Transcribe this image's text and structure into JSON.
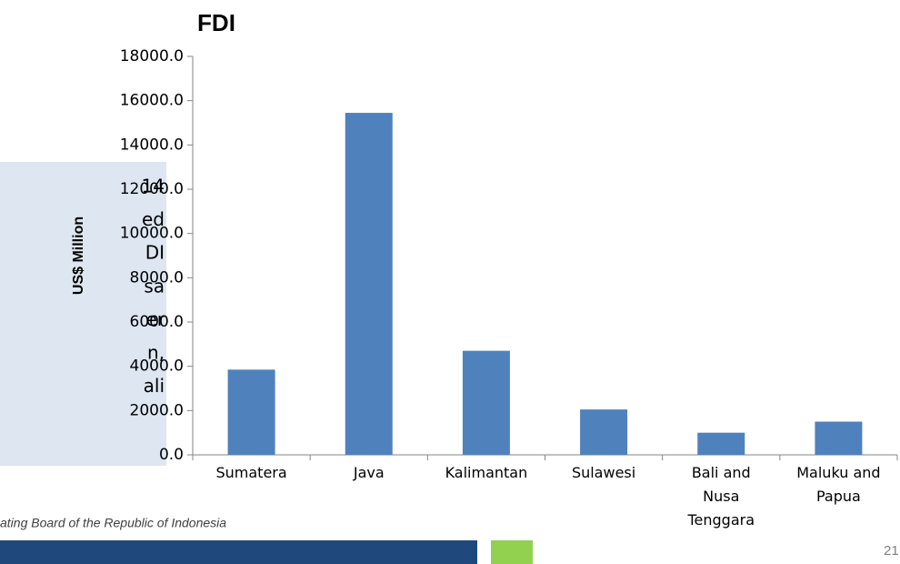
{
  "chart_data": {
    "type": "bar",
    "title": "FDI",
    "y_label": "US$ Million",
    "categories": [
      "Sumatera",
      "Java",
      "Kalimantan",
      "Sulawesi",
      "Bali and Nusa Tenggara",
      "Maluku and Papua"
    ],
    "values": [
      3850,
      15450,
      4700,
      2050,
      1000,
      1500
    ],
    "color": "#4f81bd",
    "ylim": [
      0,
      18000
    ],
    "yticks": [
      {
        "value": 0,
        "label": "0.0"
      },
      {
        "value": 2000,
        "label": "2000.0"
      },
      {
        "value": 4000,
        "label": "4000.0"
      },
      {
        "value": 6000,
        "label": "6000.0"
      },
      {
        "value": 8000,
        "label": "8000.0"
      },
      {
        "value": 10000,
        "label": "10000.0"
      },
      {
        "value": 12000,
        "label": "12000.0"
      },
      {
        "value": 14000,
        "label": "14000.0"
      },
      {
        "value": 16000,
        "label": "16000.0"
      },
      {
        "value": 18000,
        "label": "18000.0"
      }
    ],
    "grid": false
  },
  "sidebar_text": [
    "14",
    "ed",
    "DI",
    "sa",
    "er",
    "n,",
    "ali"
  ],
  "footer_source": "ating Board of the Republic of Indonesia",
  "page_number": "21"
}
